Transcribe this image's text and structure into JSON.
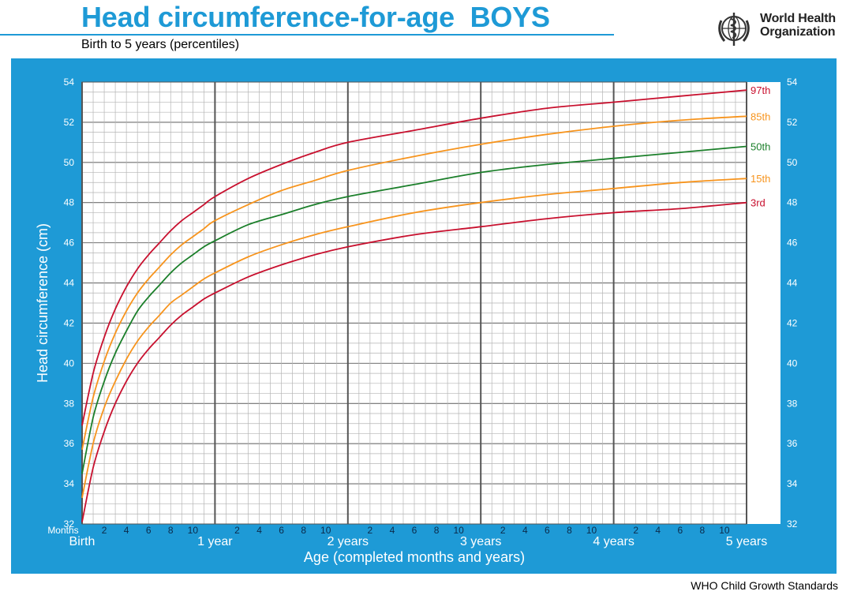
{
  "header": {
    "title": "Head circumference-for-age  BOYS",
    "subtitle": "Birth to 5 years (percentiles)",
    "org_line1": "World Health",
    "org_line2": "Organization",
    "logo_icon": "who-emblem-icon"
  },
  "footer": "WHO Child Growth Standards",
  "colors": {
    "brand_blue": "#1e9ad6",
    "p3": "#c8102e",
    "p15": "#f7941d",
    "p50": "#1b7f2a",
    "p85": "#f7941d",
    "p97": "#c8102e"
  },
  "chart_data": {
    "type": "line",
    "title": "Head circumference-for-age  BOYS",
    "subtitle": "Birth to 5 years (percentiles)",
    "xlabel": "Age (completed months and years)",
    "ylabel": "Head circumference (cm)",
    "x_unit_label": "Months",
    "xlim": [
      0,
      60
    ],
    "ylim": [
      32,
      54
    ],
    "y_ticks": [
      32,
      34,
      36,
      38,
      40,
      42,
      44,
      46,
      48,
      50,
      52,
      54
    ],
    "x_month_ticks": [
      "2",
      "4",
      "6",
      "8",
      "10",
      "2",
      "4",
      "6",
      "8",
      "10",
      "2",
      "4",
      "6",
      "8",
      "10",
      "2",
      "4",
      "6",
      "8",
      "10",
      "2",
      "4",
      "6",
      "8",
      "10"
    ],
    "x_year_labels": [
      "Birth",
      "1 year",
      "2 years",
      "3 years",
      "4 years",
      "5 years"
    ],
    "grid": true,
    "x": [
      0,
      1,
      2,
      3,
      4,
      5,
      6,
      7,
      8,
      9,
      10,
      11,
      12,
      15,
      18,
      21,
      24,
      30,
      36,
      42,
      48,
      54,
      60
    ],
    "series": [
      {
        "name": "97th",
        "color_key": "p97",
        "values": [
          36.9,
          39.5,
          41.3,
          42.7,
          43.8,
          44.7,
          45.4,
          46.0,
          46.6,
          47.1,
          47.5,
          47.9,
          48.3,
          49.2,
          49.9,
          50.5,
          51.0,
          51.6,
          52.2,
          52.7,
          53.0,
          53.3,
          53.6
        ]
      },
      {
        "name": "85th",
        "color_key": "p85",
        "values": [
          35.7,
          38.3,
          40.1,
          41.5,
          42.6,
          43.5,
          44.2,
          44.8,
          45.4,
          45.9,
          46.3,
          46.7,
          47.1,
          47.9,
          48.6,
          49.1,
          49.6,
          50.3,
          50.9,
          51.4,
          51.8,
          52.1,
          52.3
        ]
      },
      {
        "name": "50th",
        "color_key": "p50",
        "values": [
          34.5,
          37.3,
          39.1,
          40.5,
          41.6,
          42.6,
          43.3,
          43.9,
          44.5,
          45.0,
          45.4,
          45.8,
          46.1,
          46.9,
          47.4,
          47.9,
          48.3,
          48.9,
          49.5,
          49.9,
          50.2,
          50.5,
          50.8
        ]
      },
      {
        "name": "15th",
        "color_key": "p15",
        "values": [
          33.3,
          36.0,
          37.8,
          39.1,
          40.2,
          41.1,
          41.8,
          42.4,
          43.0,
          43.4,
          43.8,
          44.2,
          44.5,
          45.3,
          45.9,
          46.4,
          46.8,
          47.5,
          48.0,
          48.4,
          48.7,
          49.0,
          49.2
        ]
      },
      {
        "name": "3rd",
        "color_key": "p3",
        "values": [
          32.1,
          34.8,
          36.6,
          38.0,
          39.1,
          40.0,
          40.7,
          41.3,
          41.9,
          42.4,
          42.8,
          43.2,
          43.5,
          44.3,
          44.9,
          45.4,
          45.8,
          46.4,
          46.8,
          47.2,
          47.5,
          47.7,
          48.0
        ]
      }
    ]
  }
}
